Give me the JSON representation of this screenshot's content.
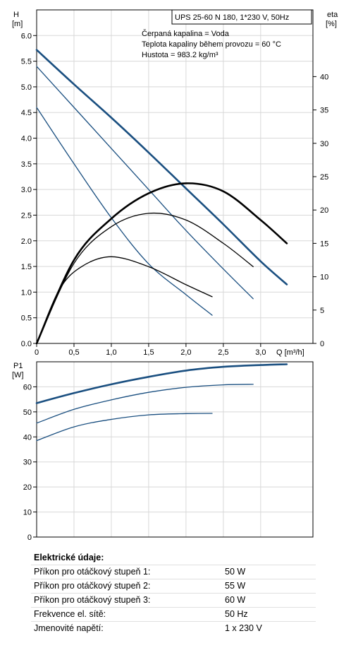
{
  "chart_data": [
    {
      "type": "line",
      "title": "UPS 25-60 N 180, 1*230 V, 50Hz",
      "annotations": [
        "Čerpaná kapalina = Voda",
        "Teplota kapaliny během provozu = 60 °C",
        "Hustota = 983.2 kg/m³"
      ],
      "xlabel": "Q [m³/h]",
      "ylabel_left": [
        "H",
        "[m]"
      ],
      "ylabel_right": [
        "eta",
        "[%]"
      ],
      "xlim": [
        0,
        3.7
      ],
      "ylim_left": [
        0,
        6.5
      ],
      "ylim_right": [
        0,
        50
      ],
      "x_ticks": [
        "0",
        "0,5",
        "1,0",
        "1,5",
        "2,0",
        "2,5",
        "3,0"
      ],
      "y_ticks_left": [
        "0.0",
        "0.5",
        "1.0",
        "1.5",
        "2.0",
        "2.5",
        "3.0",
        "3.5",
        "4.0",
        "4.5",
        "5.0",
        "5.5",
        "6.0"
      ],
      "y_ticks_right": [
        "0",
        "5",
        "10",
        "15",
        "20",
        "25",
        "30",
        "35",
        "40"
      ],
      "grid": true,
      "series": [
        {
          "kind": "head",
          "color": "#1a4f80",
          "bold": true,
          "x": [
            0,
            0.5,
            1.0,
            1.5,
            2.0,
            2.5,
            3.0,
            3.35
          ],
          "y": [
            5.72,
            5.05,
            4.4,
            3.72,
            3.02,
            2.32,
            1.6,
            1.15
          ]
        },
        {
          "kind": "head",
          "color": "#1a4f80",
          "bold": false,
          "x": [
            0,
            0.5,
            1.0,
            1.5,
            2.0,
            2.5,
            2.9
          ],
          "y": [
            5.4,
            4.6,
            3.8,
            3.0,
            2.2,
            1.45,
            0.87
          ]
        },
        {
          "kind": "head",
          "color": "#1a4f80",
          "bold": false,
          "x": [
            0,
            0.5,
            1.0,
            1.5,
            2.0,
            2.35
          ],
          "y": [
            4.6,
            3.5,
            2.45,
            1.55,
            0.95,
            0.55
          ]
        },
        {
          "kind": "eta",
          "color": "#000000",
          "bold": true,
          "x": [
            0,
            0.5,
            1.0,
            1.5,
            2.0,
            2.5,
            3.0,
            3.35
          ],
          "y": [
            0,
            12.5,
            18.7,
            22.5,
            24.0,
            22.8,
            18.5,
            15.0
          ]
        },
        {
          "kind": "eta",
          "color": "#000000",
          "bold": false,
          "x": [
            0,
            0.5,
            1.0,
            1.5,
            2.0,
            2.5,
            2.9
          ],
          "y": [
            0,
            12.0,
            17.5,
            19.5,
            18.5,
            15.0,
            11.5
          ]
        },
        {
          "kind": "eta",
          "color": "#000000",
          "bold": false,
          "x": [
            0,
            0.3,
            0.6,
            1.0,
            1.5,
            2.0,
            2.35
          ],
          "y": [
            0,
            8.0,
            11.5,
            13.0,
            11.5,
            8.8,
            7.0
          ]
        }
      ]
    },
    {
      "type": "line",
      "ylabel": [
        "P1",
        "[W]"
      ],
      "xlim": [
        0,
        3.7
      ],
      "ylim": [
        0,
        70
      ],
      "y_ticks": [
        "0",
        "10",
        "20",
        "30",
        "40",
        "50",
        "60"
      ],
      "grid": true,
      "series": [
        {
          "color": "#1a4f80",
          "bold": true,
          "x": [
            0,
            0.5,
            1.0,
            1.5,
            2.0,
            2.5,
            3.0,
            3.35
          ],
          "y": [
            53.5,
            57.5,
            61.0,
            64.0,
            66.5,
            68.0,
            68.7,
            69.0
          ]
        },
        {
          "color": "#1a4f80",
          "bold": false,
          "x": [
            0,
            0.5,
            1.0,
            1.5,
            2.0,
            2.5,
            2.9
          ],
          "y": [
            45.5,
            51.0,
            54.8,
            57.8,
            59.8,
            60.8,
            61.0
          ]
        },
        {
          "color": "#1a4f80",
          "bold": false,
          "x": [
            0,
            0.5,
            1.0,
            1.5,
            2.0,
            2.35
          ],
          "y": [
            38.5,
            44.0,
            47.0,
            48.8,
            49.3,
            49.4
          ]
        }
      ]
    }
  ],
  "electrical": {
    "heading": "Elektrické údaje:",
    "rows": [
      {
        "label": "Příkon pro otáčkový stupeň 1:",
        "value": "50 W"
      },
      {
        "label": "Příkon pro otáčkový stupeň 2:",
        "value": "55 W"
      },
      {
        "label": "Příkon pro otáčkový stupeň 3:",
        "value": "60 W"
      },
      {
        "label": "Frekvence el. sítě:",
        "value": "50 Hz"
      },
      {
        "label": "Jmenovité napětí:",
        "value": "1 x 230 V"
      }
    ]
  }
}
